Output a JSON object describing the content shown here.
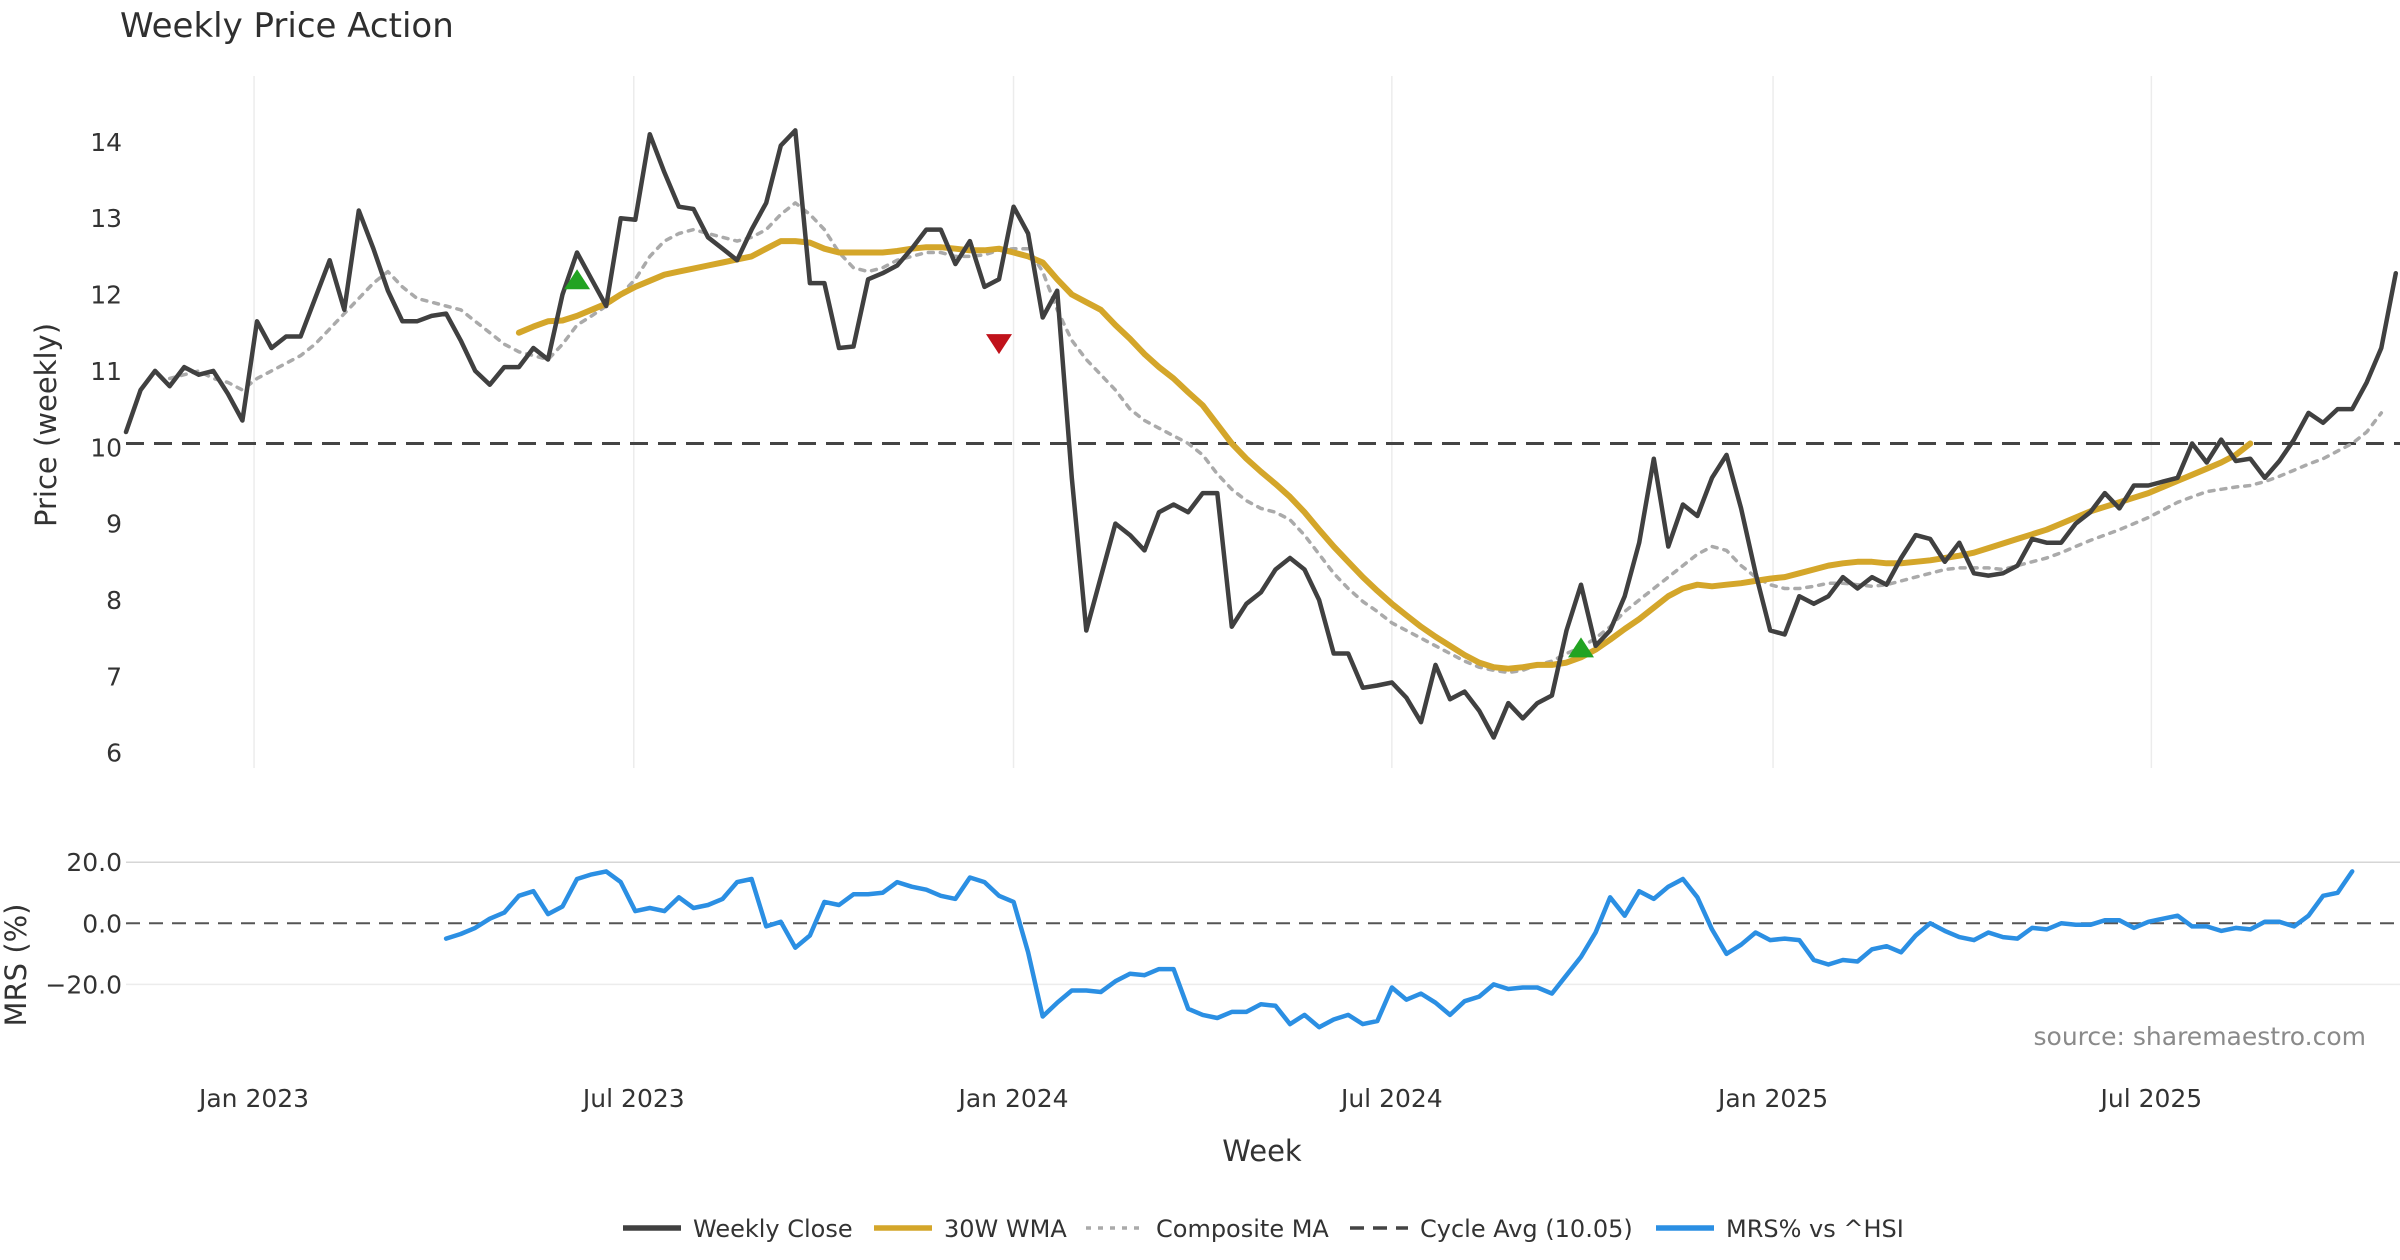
{
  "chart_data": {
    "type": "line",
    "title": "Weekly Price Action",
    "xlabel": "Week",
    "x_ticks": [
      "Jan 2023",
      "Jul 2023",
      "Jan 2024",
      "Jul 2024",
      "Jan 2025",
      "Jul 2025"
    ],
    "price_panel": {
      "ylabel": "Price (weekly)",
      "ylim": [
        5.8,
        14.6
      ],
      "y_ticks": [
        "6",
        "7",
        "8",
        "9",
        "10",
        "11",
        "12",
        "13",
        "14"
      ],
      "cycle_avg": 10.05,
      "series": [
        {
          "name": "Weekly Close",
          "color": "#404040",
          "style": "solid",
          "start_week": 0,
          "values": [
            10.2,
            10.75,
            11.0,
            10.8,
            11.05,
            10.95,
            11.0,
            10.7,
            10.35,
            11.65,
            11.3,
            11.45,
            11.45,
            11.95,
            12.45,
            11.8,
            13.1,
            12.6,
            12.05,
            11.65,
            11.65,
            11.72,
            11.75,
            11.4,
            11.0,
            10.82,
            11.05,
            11.05,
            11.3,
            11.15,
            12.0,
            12.55,
            12.2,
            11.85,
            13.0,
            12.98,
            14.1,
            13.6,
            13.15,
            13.12,
            12.75,
            12.6,
            12.45,
            12.85,
            13.2,
            13.95,
            14.15,
            12.15,
            12.15,
            11.3,
            11.32,
            12.2,
            12.28,
            12.38,
            12.6,
            12.85,
            12.85,
            12.4,
            12.7,
            12.1,
            12.2,
            13.15,
            12.8,
            11.7,
            12.05,
            9.6,
            7.6,
            8.3,
            9.0,
            8.85,
            8.65,
            9.15,
            9.25,
            9.15,
            9.4,
            9.4,
            7.65,
            7.95,
            8.1,
            8.4,
            8.55,
            8.4,
            8.0,
            7.3,
            7.3,
            6.85,
            6.88,
            6.92,
            6.72,
            6.4,
            7.15,
            6.7,
            6.8,
            6.55,
            6.2,
            6.65,
            6.45,
            6.65,
            6.75,
            7.6,
            8.2,
            7.4,
            7.6,
            8.05,
            8.75,
            9.85,
            8.7,
            9.25,
            9.1,
            9.6,
            9.9,
            9.2,
            8.35,
            7.6,
            7.55,
            8.05,
            7.95,
            8.05,
            8.3,
            8.15,
            8.3,
            8.2,
            8.55,
            8.85,
            8.8,
            8.5,
            8.75,
            8.35,
            8.32,
            8.35,
            8.45,
            8.8,
            8.75,
            8.75,
            9.0,
            9.15,
            9.4,
            9.2,
            9.5,
            9.5,
            9.55,
            9.6,
            10.05,
            9.8,
            10.1,
            9.82,
            9.85,
            9.6,
            9.82,
            10.1,
            10.45,
            10.32,
            10.5,
            10.5,
            10.85,
            11.3,
            12.28
          ]
        },
        {
          "name": "30W WMA",
          "color": "#d4a62a",
          "style": "solid",
          "start_week": 27,
          "values": [
            11.5,
            11.58,
            11.65,
            11.66,
            11.72,
            11.8,
            11.88,
            12.0,
            12.1,
            12.18,
            12.26,
            12.3,
            12.34,
            12.38,
            12.42,
            12.46,
            12.5,
            12.6,
            12.7,
            12.7,
            12.68,
            12.6,
            12.55,
            12.55,
            12.55,
            12.55,
            12.57,
            12.6,
            12.62,
            12.62,
            12.6,
            12.58,
            12.58,
            12.6,
            12.55,
            12.5,
            12.42,
            12.2,
            12.0,
            11.9,
            11.8,
            11.6,
            11.42,
            11.22,
            11.05,
            10.9,
            10.72,
            10.55,
            10.3,
            10.05,
            9.85,
            9.68,
            9.52,
            9.35,
            9.15,
            8.92,
            8.7,
            8.5,
            8.3,
            8.12,
            7.95,
            7.8,
            7.65,
            7.52,
            7.4,
            7.28,
            7.18,
            7.12,
            7.1,
            7.12,
            7.15,
            7.15,
            7.18,
            7.25,
            7.35,
            7.48,
            7.62,
            7.75,
            7.9,
            8.05,
            8.15,
            8.2,
            8.18,
            8.2,
            8.22,
            8.25,
            8.28,
            8.3,
            8.35,
            8.4,
            8.45,
            8.48,
            8.5,
            8.5,
            8.48,
            8.48,
            8.5,
            8.52,
            8.55,
            8.58,
            8.62,
            8.68,
            8.74,
            8.8,
            8.86,
            8.92,
            9.0,
            9.08,
            9.16,
            9.22,
            9.28,
            9.34,
            9.4,
            9.48,
            9.56,
            9.64,
            9.72,
            9.8,
            9.9,
            10.05
          ]
        },
        {
          "name": "Composite MA",
          "color": "#aaaaaa",
          "style": "dotted",
          "start_week": 3,
          "values": [
            10.9,
            10.95,
            11.0,
            10.9,
            10.85,
            10.75,
            10.9,
            11.0,
            11.1,
            11.2,
            11.35,
            11.55,
            11.75,
            11.95,
            12.15,
            12.3,
            12.1,
            11.95,
            11.9,
            11.85,
            11.8,
            11.65,
            11.5,
            11.35,
            11.25,
            11.2,
            11.15,
            11.35,
            11.6,
            11.72,
            11.85,
            12.0,
            12.2,
            12.5,
            12.7,
            12.8,
            12.85,
            12.8,
            12.75,
            12.7,
            12.75,
            12.85,
            13.05,
            13.2,
            13.05,
            12.85,
            12.55,
            12.35,
            12.3,
            12.35,
            12.45,
            12.5,
            12.55,
            12.55,
            12.5,
            12.5,
            12.52,
            12.58,
            12.6,
            12.6,
            12.3,
            11.8,
            11.4,
            11.15,
            10.95,
            10.75,
            10.5,
            10.35,
            10.25,
            10.15,
            10.05,
            9.9,
            9.65,
            9.45,
            9.3,
            9.2,
            9.15,
            9.05,
            8.85,
            8.6,
            8.35,
            8.15,
            7.98,
            7.85,
            7.7,
            7.6,
            7.5,
            7.4,
            7.3,
            7.2,
            7.12,
            7.08,
            7.05,
            7.08,
            7.15,
            7.2,
            7.3,
            7.38,
            7.5,
            7.65,
            7.85,
            8.0,
            8.15,
            8.3,
            8.45,
            8.6,
            8.7,
            8.65,
            8.45,
            8.3,
            8.2,
            8.15,
            8.15,
            8.18,
            8.22,
            8.22,
            8.2,
            8.18,
            8.2,
            8.25,
            8.3,
            8.35,
            8.4,
            8.42,
            8.42,
            8.42,
            8.4,
            8.45,
            8.5,
            8.55,
            8.62,
            8.7,
            8.78,
            8.85,
            8.92,
            9.0,
            9.08,
            9.18,
            9.28,
            9.35,
            9.42,
            9.45,
            9.48,
            9.5,
            9.55,
            9.62,
            9.7,
            9.78,
            9.85,
            9.95,
            10.05,
            10.2,
            10.45
          ]
        }
      ],
      "signals": [
        {
          "type": "buy",
          "week": 31,
          "value": 12.2,
          "color": "#22a322"
        },
        {
          "type": "sell",
          "week": 60,
          "value": 11.35,
          "color": "#c0121b"
        },
        {
          "type": "buy",
          "week": 100,
          "value": 7.38,
          "color": "#22a322"
        }
      ]
    },
    "mrs_panel": {
      "ylabel": "MRS (%)",
      "ylim": [
        -31,
        24
      ],
      "y_ticks": [
        "20.0",
        "0.0",
        "−20.0"
      ],
      "series": [
        {
          "name": "MRS% vs ^HSI",
          "color": "#2b8fe3",
          "style": "solid",
          "start_week": 22,
          "values": [
            -5,
            -3.5,
            -1.5,
            1.5,
            3.5,
            9,
            10.5,
            3,
            5.5,
            14.5,
            16,
            17,
            13.5,
            4,
            5,
            4,
            8.5,
            5,
            6,
            8,
            13.5,
            14.5,
            -1,
            0.5,
            -8,
            -4,
            7,
            6,
            9.5,
            9.5,
            10,
            13.5,
            12,
            11,
            9,
            8,
            15,
            13.5,
            9,
            7,
            -9.5,
            -30.5,
            -26,
            -22,
            -22,
            -22.5,
            -19,
            -16.5,
            -17,
            -15,
            -15,
            -28,
            -30,
            -31,
            -29,
            -29,
            -26.5,
            -27,
            -33,
            -30,
            -34,
            -31.5,
            -30,
            -33,
            -32,
            -21,
            -25,
            -23,
            -26,
            -30,
            -25.5,
            -24,
            -20,
            -21.5,
            -21,
            -21,
            -23,
            -17,
            -11,
            -3,
            8.5,
            2.5,
            10.5,
            8,
            12,
            14.5,
            8.5,
            -2,
            -10,
            -7,
            -3,
            -5.5,
            -5,
            -5.5,
            -12,
            -13.5,
            -12,
            -12.5,
            -8.5,
            -7.5,
            -9.5,
            -4,
            0,
            -2.5,
            -4.5,
            -5.5,
            -3,
            -4.5,
            -5,
            -1.5,
            -2,
            0,
            -0.5,
            -0.5,
            1,
            1,
            -1.5,
            0.5,
            1.5,
            2.5,
            -1,
            -1,
            -2.5,
            -1.5,
            -2,
            0.5,
            0.5,
            -1,
            2.5,
            9,
            10,
            17
          ]
        }
      ],
      "zero_line": 0
    },
    "legend": [
      {
        "label": "Weekly Close",
        "color": "#404040",
        "style": "solid"
      },
      {
        "label": "30W WMA",
        "color": "#d4a62a",
        "style": "solid"
      },
      {
        "label": "Composite MA",
        "color": "#aaaaaa",
        "style": "dotted"
      },
      {
        "label": "Cycle Avg (10.05)",
        "color": "#444444",
        "style": "dashed"
      },
      {
        "label": "MRS% vs ^HSI",
        "color": "#2b8fe3",
        "style": "solid"
      }
    ],
    "legend_position": "bottom",
    "source": "source: sharemaestro.com",
    "grid": true
  }
}
